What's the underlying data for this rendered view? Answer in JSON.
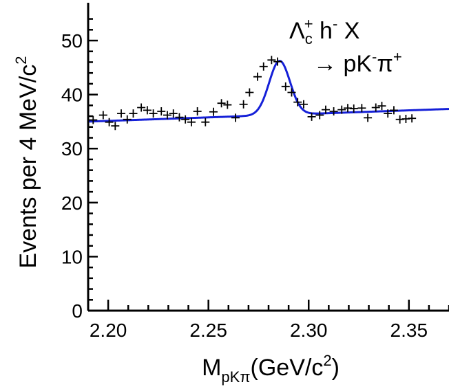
{
  "chart_data": {
    "type": "scatter",
    "title": "",
    "xlabel": {
      "main": "M",
      "sub": "pKπ",
      "unit": "(GeV/c",
      "sup": "2",
      "close": ")"
    },
    "ylabel": {
      "main": "Events per 4 MeV/c",
      "sup": "2"
    },
    "xlim": [
      2.19,
      2.37
    ],
    "ylim": [
      0,
      57
    ],
    "x_ticks": [
      "2.20",
      "2.25",
      "2.30",
      "2.35"
    ],
    "x_tick_values": [
      2.2,
      2.25,
      2.3,
      2.35
    ],
    "y_ticks": [
      "0",
      "10",
      "20",
      "30",
      "40",
      "50"
    ],
    "y_tick_values": [
      0,
      10,
      20,
      30,
      40,
      50
    ],
    "grid": false,
    "annotation": {
      "line1": {
        "lambda": "Λ",
        "sub": "c",
        "sup": "+",
        "rest": " h",
        "rest_sup": "-",
        "tail": " X"
      },
      "line2": {
        "arrow": "→ pK",
        "k_sup": "-",
        "pi": "π",
        "pi_sup": "+"
      }
    },
    "series": [
      {
        "type": "scatter",
        "marker": "+",
        "color": "#000000",
        "points": [
          [
            2.1925,
            35.3
          ],
          [
            2.1975,
            36.2
          ],
          [
            2.2005,
            34.9
          ],
          [
            2.2035,
            34.2
          ],
          [
            2.2065,
            36.5
          ],
          [
            2.2095,
            35.4
          ],
          [
            2.2125,
            36.5
          ],
          [
            2.2165,
            37.6
          ],
          [
            2.2195,
            37.1
          ],
          [
            2.2225,
            36.5
          ],
          [
            2.2265,
            36.9
          ],
          [
            2.2295,
            36.2
          ],
          [
            2.2325,
            36.5
          ],
          [
            2.2355,
            35.8
          ],
          [
            2.2385,
            35.4
          ],
          [
            2.2415,
            34.9
          ],
          [
            2.2445,
            36.9
          ],
          [
            2.2485,
            34.9
          ],
          [
            2.2525,
            36.8
          ],
          [
            2.2565,
            38.4
          ],
          [
            2.2595,
            38.1
          ],
          [
            2.2635,
            35.7
          ],
          [
            2.2675,
            38.2
          ],
          [
            2.2705,
            40.4
          ],
          [
            2.2745,
            43.3
          ],
          [
            2.2775,
            45.2
          ],
          [
            2.2815,
            46.4
          ],
          [
            2.2845,
            46.1
          ],
          [
            2.2885,
            41.5
          ],
          [
            2.2915,
            40.4
          ],
          [
            2.2945,
            38.6
          ],
          [
            2.2975,
            38.2
          ],
          [
            2.3015,
            35.9
          ],
          [
            2.3055,
            36.2
          ],
          [
            2.3085,
            37.2
          ],
          [
            2.3125,
            36.9
          ],
          [
            2.3165,
            37.2
          ],
          [
            2.3195,
            37.5
          ],
          [
            2.3225,
            37.4
          ],
          [
            2.3265,
            37.5
          ],
          [
            2.3295,
            35.7
          ],
          [
            2.3335,
            37.6
          ],
          [
            2.3365,
            37.9
          ],
          [
            2.3395,
            36.5
          ],
          [
            2.3425,
            37.1
          ],
          [
            2.3455,
            35.4
          ],
          [
            2.3485,
            35.5
          ],
          [
            2.3515,
            35.6
          ]
        ]
      },
      {
        "type": "line",
        "color": "#1520d8",
        "fit": {
          "model": "gaussian_plus_linear",
          "bg_a": 35.0,
          "bg_b": 13.0,
          "x0": 2.19,
          "peak_height": 10.0,
          "mean": 2.2855,
          "sigma": 0.0052
        }
      }
    ]
  }
}
